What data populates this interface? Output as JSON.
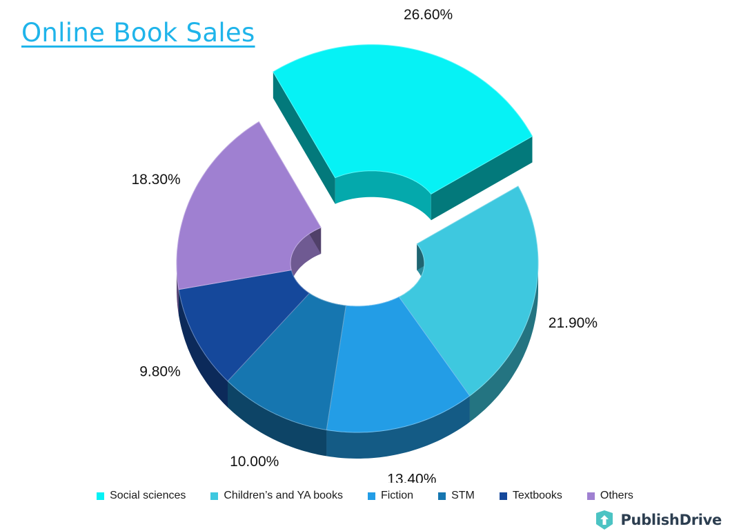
{
  "title": "Online Book Sales",
  "brand": {
    "name": "PublishDrive"
  },
  "chart_data": {
    "type": "pie",
    "variant": "3d-donut",
    "title": "Online Book Sales",
    "legend_position": "bottom",
    "slices": [
      {
        "label": "Social sciences",
        "value": 26.6,
        "value_label": "26.60%",
        "color": "#06f2f5",
        "exploded": true
      },
      {
        "label": "Children’s and YA books",
        "value": 21.9,
        "value_label": "21.90%",
        "color": "#3ec8df",
        "exploded": false
      },
      {
        "label": "Fiction",
        "value": 13.4,
        "value_label": "13.40%",
        "color": "#239de6",
        "exploded": false
      },
      {
        "label": "STM",
        "value": 10.0,
        "value_label": "10.00%",
        "color": "#1676b0",
        "exploded": false
      },
      {
        "label": "Textbooks",
        "value": 9.8,
        "value_label": "9.80%",
        "color": "#15489b",
        "exploded": false
      },
      {
        "label": "Others",
        "value": 18.3,
        "value_label": "18.30%",
        "color": "#9f80d1",
        "exploded": false
      }
    ]
  }
}
